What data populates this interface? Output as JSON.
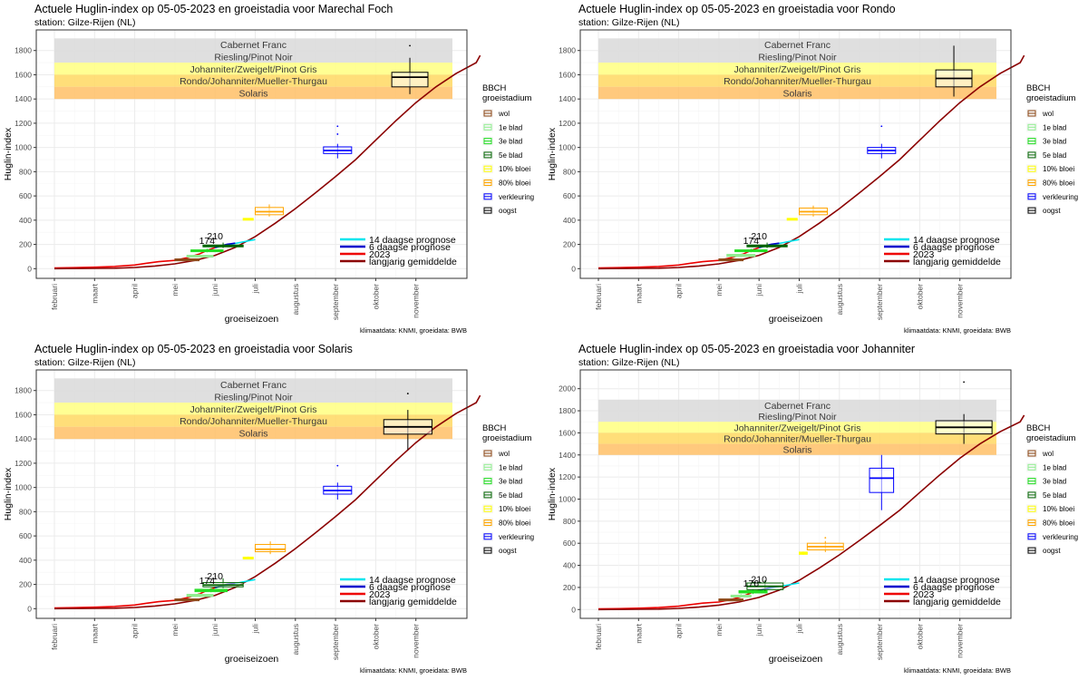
{
  "common": {
    "xlabel": "groeiseizoen",
    "ylabel": "Huglin-index",
    "months": [
      "februari",
      "maart",
      "april",
      "mei",
      "juni",
      "juli",
      "augustus",
      "september",
      "oktober",
      "november"
    ],
    "caption": "klimaatdata: KNMI, groeidata: BWB",
    "bands": [
      {
        "label": "Cabernet Franc",
        "lo": 1800,
        "hi": 1900,
        "color": "#d9d9d9"
      },
      {
        "label": "Riesling/Pinot Noir",
        "lo": 1700,
        "hi": 1800,
        "color": "#d9d9d9"
      },
      {
        "label": "Johanniter/Zweigelt/Pinot Gris",
        "lo": 1600,
        "hi": 1700,
        "color": "#ffff80"
      },
      {
        "label": "Rondo/Johanniter/Mueller-Thurgau",
        "lo": 1500,
        "hi": 1600,
        "color": "#ffd862"
      },
      {
        "label": "Solaris",
        "lo": 1400,
        "hi": 1500,
        "color": "#ffbf66"
      }
    ],
    "legend_title": [
      "BBCH",
      "groeistadium"
    ],
    "stages": [
      {
        "label": "wol",
        "color": "#8b4513"
      },
      {
        "label": "1e blad",
        "color": "#90ee90"
      },
      {
        "label": "3e blad",
        "color": "#22dd22"
      },
      {
        "label": "5e blad",
        "color": "#006400"
      },
      {
        "label": "10% bloei",
        "color": "#ffff00"
      },
      {
        "label": "80% bloei",
        "color": "#ffa500"
      },
      {
        "label": "verkleuring",
        "color": "#0000ff"
      },
      {
        "label": "oogst",
        "color": "#000000"
      }
    ],
    "lines_legend": [
      {
        "label": "14 daagse prognose",
        "color": "#00e5ee"
      },
      {
        "label": "6 daagse prognose",
        "color": "#0000cd"
      },
      {
        "label": "2023",
        "color": "#ee0000"
      },
      {
        "label": "langjarig gemiddelde",
        "color": "#8b0000"
      }
    ]
  },
  "chart_data": [
    {
      "type": "line",
      "title": "Actuele Huglin-index op 05-05-2023 en groeistadia voor Marechal Foch",
      "subtitle": "station: Gilze-Rijen (NL)",
      "ylim": [
        -80,
        1970
      ],
      "yticks": [
        0,
        200,
        400,
        600,
        800,
        1000,
        1200,
        1400,
        1600,
        1800
      ],
      "data_labels": [
        {
          "text": "174",
          "x": 3.8,
          "y": 174
        },
        {
          "text": "210",
          "x": 4.0,
          "y": 210
        }
      ],
      "boxes": [
        {
          "stage": "wol",
          "x0": 3.0,
          "x1": 3.6,
          "q1": 70,
          "med": 75,
          "q3": 80,
          "lo": 68,
          "hi": 85
        },
        {
          "stage": "1e blad",
          "x0": 3.3,
          "x1": 3.95,
          "q1": 100,
          "med": 105,
          "q3": 110,
          "lo": 95,
          "hi": 118
        },
        {
          "stage": "3e blad",
          "x0": 3.4,
          "x1": 4.2,
          "q1": 140,
          "med": 148,
          "q3": 155,
          "lo": 135,
          "hi": 165
        },
        {
          "stage": "5e blad",
          "x0": 3.7,
          "x1": 4.7,
          "q1": 180,
          "med": 188,
          "q3": 195,
          "lo": 170,
          "hi": 215
        },
        {
          "stage": "10% bloei",
          "x0": 4.7,
          "x1": 4.95,
          "q1": 405,
          "med": 410,
          "q3": 415,
          "lo": 405,
          "hi": 415
        },
        {
          "stage": "80% bloei",
          "x0": 5.0,
          "x1": 5.7,
          "q1": 445,
          "med": 470,
          "q3": 505,
          "lo": 430,
          "hi": 530
        },
        {
          "stage": "verkleuring",
          "x0": 6.7,
          "x1": 7.4,
          "q1": 950,
          "med": 975,
          "q3": 1005,
          "lo": 910,
          "hi": 1030,
          "out": [
            1110,
            1175
          ]
        },
        {
          "stage": "oogst",
          "x0": 8.4,
          "x1": 9.3,
          "q1": 1500,
          "med": 1580,
          "q3": 1620,
          "lo": 1440,
          "hi": 1740,
          "out": [
            1840
          ]
        }
      ]
    },
    {
      "type": "line",
      "title": "Actuele Huglin-index op 05-05-2023 en groeistadia voor Rondo",
      "subtitle": "station: Gilze-Rijen (NL)",
      "ylim": [
        -80,
        1970
      ],
      "yticks": [
        0,
        200,
        400,
        600,
        800,
        1000,
        1200,
        1400,
        1600,
        1800
      ],
      "data_labels": [
        {
          "text": "174",
          "x": 3.8,
          "y": 174
        },
        {
          "text": "210",
          "x": 4.0,
          "y": 210
        }
      ],
      "boxes": [
        {
          "stage": "wol",
          "x0": 3.0,
          "x1": 3.6,
          "q1": 70,
          "med": 75,
          "q3": 80,
          "lo": 68,
          "hi": 85
        },
        {
          "stage": "1e blad",
          "x0": 3.2,
          "x1": 3.9,
          "q1": 100,
          "med": 108,
          "q3": 118,
          "lo": 95,
          "hi": 125
        },
        {
          "stage": "3e blad",
          "x0": 3.4,
          "x1": 4.2,
          "q1": 140,
          "med": 148,
          "q3": 155,
          "lo": 135,
          "hi": 165
        },
        {
          "stage": "5e blad",
          "x0": 3.7,
          "x1": 4.7,
          "q1": 180,
          "med": 188,
          "q3": 195,
          "lo": 170,
          "hi": 215
        },
        {
          "stage": "10% bloei",
          "x0": 4.7,
          "x1": 4.95,
          "q1": 405,
          "med": 410,
          "q3": 415,
          "lo": 405,
          "hi": 415
        },
        {
          "stage": "80% bloei",
          "x0": 5.0,
          "x1": 5.7,
          "q1": 445,
          "med": 470,
          "q3": 500,
          "lo": 430,
          "hi": 520
        },
        {
          "stage": "verkleuring",
          "x0": 6.7,
          "x1": 7.4,
          "q1": 950,
          "med": 975,
          "q3": 1000,
          "lo": 910,
          "hi": 1030,
          "out": [
            1175
          ]
        },
        {
          "stage": "oogst",
          "x0": 8.4,
          "x1": 9.3,
          "q1": 1500,
          "med": 1570,
          "q3": 1640,
          "lo": 1420,
          "hi": 1840
        }
      ]
    },
    {
      "type": "line",
      "title": "Actuele Huglin-index op 05-05-2023 en groeistadia voor Solaris",
      "subtitle": "station: Gilze-Rijen (NL)",
      "ylim": [
        -80,
        1970
      ],
      "yticks": [
        0,
        200,
        400,
        600,
        800,
        1000,
        1200,
        1400,
        1600,
        1800
      ],
      "data_labels": [
        {
          "text": "174",
          "x": 3.8,
          "y": 174
        },
        {
          "text": "210",
          "x": 4.0,
          "y": 210
        }
      ],
      "boxes": [
        {
          "stage": "wol",
          "x0": 3.0,
          "x1": 3.6,
          "q1": 70,
          "med": 75,
          "q3": 80,
          "lo": 68,
          "hi": 85
        },
        {
          "stage": "1e blad",
          "x0": 3.3,
          "x1": 3.95,
          "q1": 100,
          "med": 108,
          "q3": 118,
          "lo": 95,
          "hi": 125
        },
        {
          "stage": "3e blad",
          "x0": 3.5,
          "x1": 4.3,
          "q1": 140,
          "med": 150,
          "q3": 160,
          "lo": 135,
          "hi": 170
        },
        {
          "stage": "5e blad",
          "x0": 3.7,
          "x1": 4.7,
          "q1": 180,
          "med": 195,
          "q3": 215,
          "lo": 170,
          "hi": 250
        },
        {
          "stage": "10% bloei",
          "x0": 4.7,
          "x1": 4.95,
          "q1": 415,
          "med": 420,
          "q3": 425,
          "lo": 410,
          "hi": 430
        },
        {
          "stage": "80% bloei",
          "x0": 5.0,
          "x1": 5.75,
          "q1": 470,
          "med": 490,
          "q3": 530,
          "lo": 450,
          "hi": 555
        },
        {
          "stage": "verkleuring",
          "x0": 6.7,
          "x1": 7.4,
          "q1": 945,
          "med": 975,
          "q3": 1010,
          "lo": 900,
          "hi": 1040,
          "out": [
            1180
          ]
        },
        {
          "stage": "oogst",
          "x0": 8.2,
          "x1": 9.4,
          "q1": 1440,
          "med": 1500,
          "q3": 1560,
          "lo": 1310,
          "hi": 1640,
          "out": [
            1775
          ]
        }
      ]
    },
    {
      "type": "line",
      "title": "Actuele Huglin-index op 05-05-2023 en groeistadia voor Johanniter",
      "subtitle": "station: Gilze-Rijen (NL)",
      "ylim": [
        -80,
        2170
      ],
      "yticks": [
        0,
        200,
        400,
        600,
        800,
        1000,
        1200,
        1400,
        1600,
        1800,
        2000
      ],
      "data_labels": [
        {
          "text": "176",
          "x": 3.8,
          "y": 176
        },
        {
          "text": "210",
          "x": 4.0,
          "y": 210
        }
      ],
      "boxes": [
        {
          "stage": "wol",
          "x0": 3.0,
          "x1": 3.6,
          "q1": 85,
          "med": 90,
          "q3": 95,
          "lo": 80,
          "hi": 100
        },
        {
          "stage": "1e blad",
          "x0": 3.3,
          "x1": 3.8,
          "q1": 115,
          "med": 120,
          "q3": 130,
          "lo": 110,
          "hi": 140
        },
        {
          "stage": "3e blad",
          "x0": 3.5,
          "x1": 4.2,
          "q1": 150,
          "med": 160,
          "q3": 170,
          "lo": 140,
          "hi": 180
        },
        {
          "stage": "5e blad",
          "x0": 3.7,
          "x1": 4.6,
          "q1": 180,
          "med": 210,
          "q3": 240,
          "lo": 170,
          "hi": 265
        },
        {
          "stage": "10% bloei",
          "x0": 5.0,
          "x1": 5.2,
          "q1": 500,
          "med": 510,
          "q3": 520,
          "lo": 495,
          "hi": 525
        },
        {
          "stage": "80% bloei",
          "x0": 5.2,
          "x1": 6.1,
          "q1": 540,
          "med": 570,
          "q3": 600,
          "lo": 520,
          "hi": 620,
          "out": [
            650
          ]
        },
        {
          "stage": "verkleuring",
          "x0": 6.75,
          "x1": 7.35,
          "q1": 1060,
          "med": 1190,
          "q3": 1280,
          "lo": 900,
          "hi": 1400
        },
        {
          "stage": "oogst",
          "x0": 8.4,
          "x1": 9.8,
          "q1": 1590,
          "med": 1650,
          "q3": 1710,
          "lo": 1500,
          "hi": 1770,
          "out": [
            2060
          ]
        }
      ]
    }
  ]
}
